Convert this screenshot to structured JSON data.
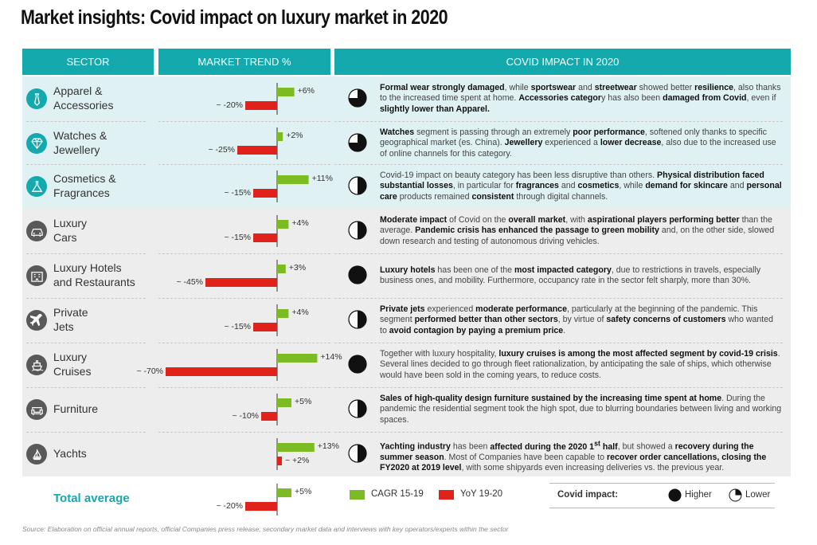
{
  "title": "Market insights: Covid impact on luxury market in 2020",
  "headers": {
    "sector": "SECTOR",
    "trend": "MARKET TREND %",
    "impact": "COVID IMPACT IN 2020"
  },
  "colors": {
    "teal": "#13a9ad",
    "green": "#7dbb25",
    "red": "#e0221b",
    "band_light": "#dff1f2",
    "band_grey": "#ededed",
    "icon_teal": "#13a9ad",
    "icon_grey": "#595959"
  },
  "chart_data": {
    "type": "bar",
    "title": "MARKET TREND %",
    "series": [
      {
        "name": "CAGR 15-19",
        "values": [
          6,
          2,
          11,
          4,
          3,
          4,
          14,
          5,
          13,
          5
        ]
      },
      {
        "name": "YoY 19-20",
        "values": [
          -20,
          -25,
          -15,
          -15,
          -45,
          -15,
          -70,
          -10,
          2,
          -20
        ]
      }
    ],
    "categories": [
      "Apparel & Accessories",
      "Watches & Jewellery",
      "Cosmetics & Fragrances",
      "Luxury Cars",
      "Luxury Hotels and Restaurants",
      "Private Jets",
      "Luxury Cruises",
      "Furniture",
      "Yachts",
      "Total average"
    ],
    "value_labels_pos": [
      "+6%",
      "+2%",
      "+11%",
      "+4%",
      "+3%",
      "+4%",
      "+14%",
      "+5%",
      "+13%",
      "+5%"
    ],
    "value_labels_neg": [
      "~ -20%",
      "~ -25%",
      "~ -15%",
      "~ -15%",
      "~ -45%",
      "~ -15%",
      "~ -70%",
      "~ -10%",
      "~ +2%",
      "~ -20%"
    ]
  },
  "rows": [
    {
      "line1": "Apparel &",
      "line2": "Accessories",
      "icon": "tie-icon",
      "impact": "higher",
      "pie": 0.75,
      "html": "<b>Formal wear strongly damaged</b>, while <b>sportswear</b> and <b>streetwear</b> showed better <b>resilience</b>, also thanks to the increased time spent at home. <b>Accessories categor</b>y has also been <b>damaged from Covid</b>, even if <b>slightly lower than Apparel.</b>"
    },
    {
      "line1": "Watches &",
      "line2": "Jewellery",
      "icon": "diamond-icon",
      "impact": "higher",
      "pie": 0.75,
      "html": "<b>Watches</b> segment is passing through an extremely <b>poor performance</b>, softened only thanks to specific geographical market (es. China). <b>Jewellery</b> experienced a <b>lower decrease</b>, also due to the increased use of online channels for this category."
    },
    {
      "line1": "Cosmetics &",
      "line2": "Fragrances",
      "icon": "flask-icon",
      "impact": "lower",
      "pie": 0.5,
      "html": "Covid-19 impact on beauty category has been less disruptive than others. <b>Physical distribution faced substantial losses</b>, in particular for <b>fragrances</b> and <b>cosmetics</b>, while <b>demand for skincare</b> and <b>personal care</b> products remained <b>consistent</b> through digital channels."
    },
    {
      "line1": "Luxury",
      "line2": "Cars",
      "icon": "car-icon",
      "impact": "lower",
      "pie": 0.5,
      "html": "<b>Moderate impact</b> of Covid on the <b>overall market</b>, with <b>aspirational players performing better</b> than the average. <b>Pandemic crisis has enhanced the passage to green mobility</b> and, on the other side, slowed down research and testing of autonomous driving vehicles."
    },
    {
      "line1": "Luxury Hotels",
      "line2": "and Restaurants",
      "icon": "hotel-icon",
      "impact": "higher",
      "pie": 1.0,
      "html": "<b>Luxury hotels</b> has been one of the <b>most impacted category</b>, due to restrictions in travels, especially business ones, and mobility. Furthermore, occupancy rate in the sector felt sharply, more than 30%."
    },
    {
      "line1": "Private",
      "line2": "Jets",
      "icon": "airplane-icon",
      "impact": "lower",
      "pie": 0.5,
      "html": "<b>Private jets</b> experienced <b>moderate performance</b>, particularly at the beginning of the pandemic. This segment <b>performed better than other sectors</b>, by virtue of <b>safety concerns of customers</b> who wanted to <b>avoid contagion by paying a premium price</b>."
    },
    {
      "line1": "Luxury",
      "line2": "Cruises",
      "icon": "ship-icon",
      "impact": "higher",
      "pie": 1.0,
      "html": "Together with luxury hospitality, <b>luxury cruises is among the most affected segment by covid-19 crisis</b>. Several lines decided to go through fleet rationalization, by anticipating the sale of ships, which otherwise would have been sold in the coming years, to reduce costs."
    },
    {
      "line1": "Furniture",
      "line2": "",
      "icon": "sofa-icon",
      "impact": "lower",
      "pie": 0.5,
      "html": "<b>Sales of high-quality design furniture sustained by the increasing time spent at home</b>. During the pandemic the residential segment took the high spot, due to blurring boundaries between living and working spaces."
    },
    {
      "line1": "Yachts",
      "line2": "",
      "icon": "sailboat-icon",
      "impact": "lower",
      "pie": 0.5,
      "html": "<b>Yachting industry</b> has been <b>affected during the 2020 1<sup>st</sup> half</b>, but showed a <b>recovery during the summer season</b>. Most of Companies have been capable to <b>recover order cancellations, closing the FY2020 at 2019 level</b>, with some shipyards even increasing deliveries vs. the previous year."
    }
  ],
  "total": {
    "label": "Total average"
  },
  "legend": {
    "cagr": "CAGR 15-19",
    "yoy": "YoY 19-20",
    "impact_label": "Covid impact:",
    "higher": "Higher",
    "lower": "Lower"
  },
  "source": "Source: Elaboration on official annual reports, official Companies press release, secondary market data and interviews with key operators/experts within the sector"
}
